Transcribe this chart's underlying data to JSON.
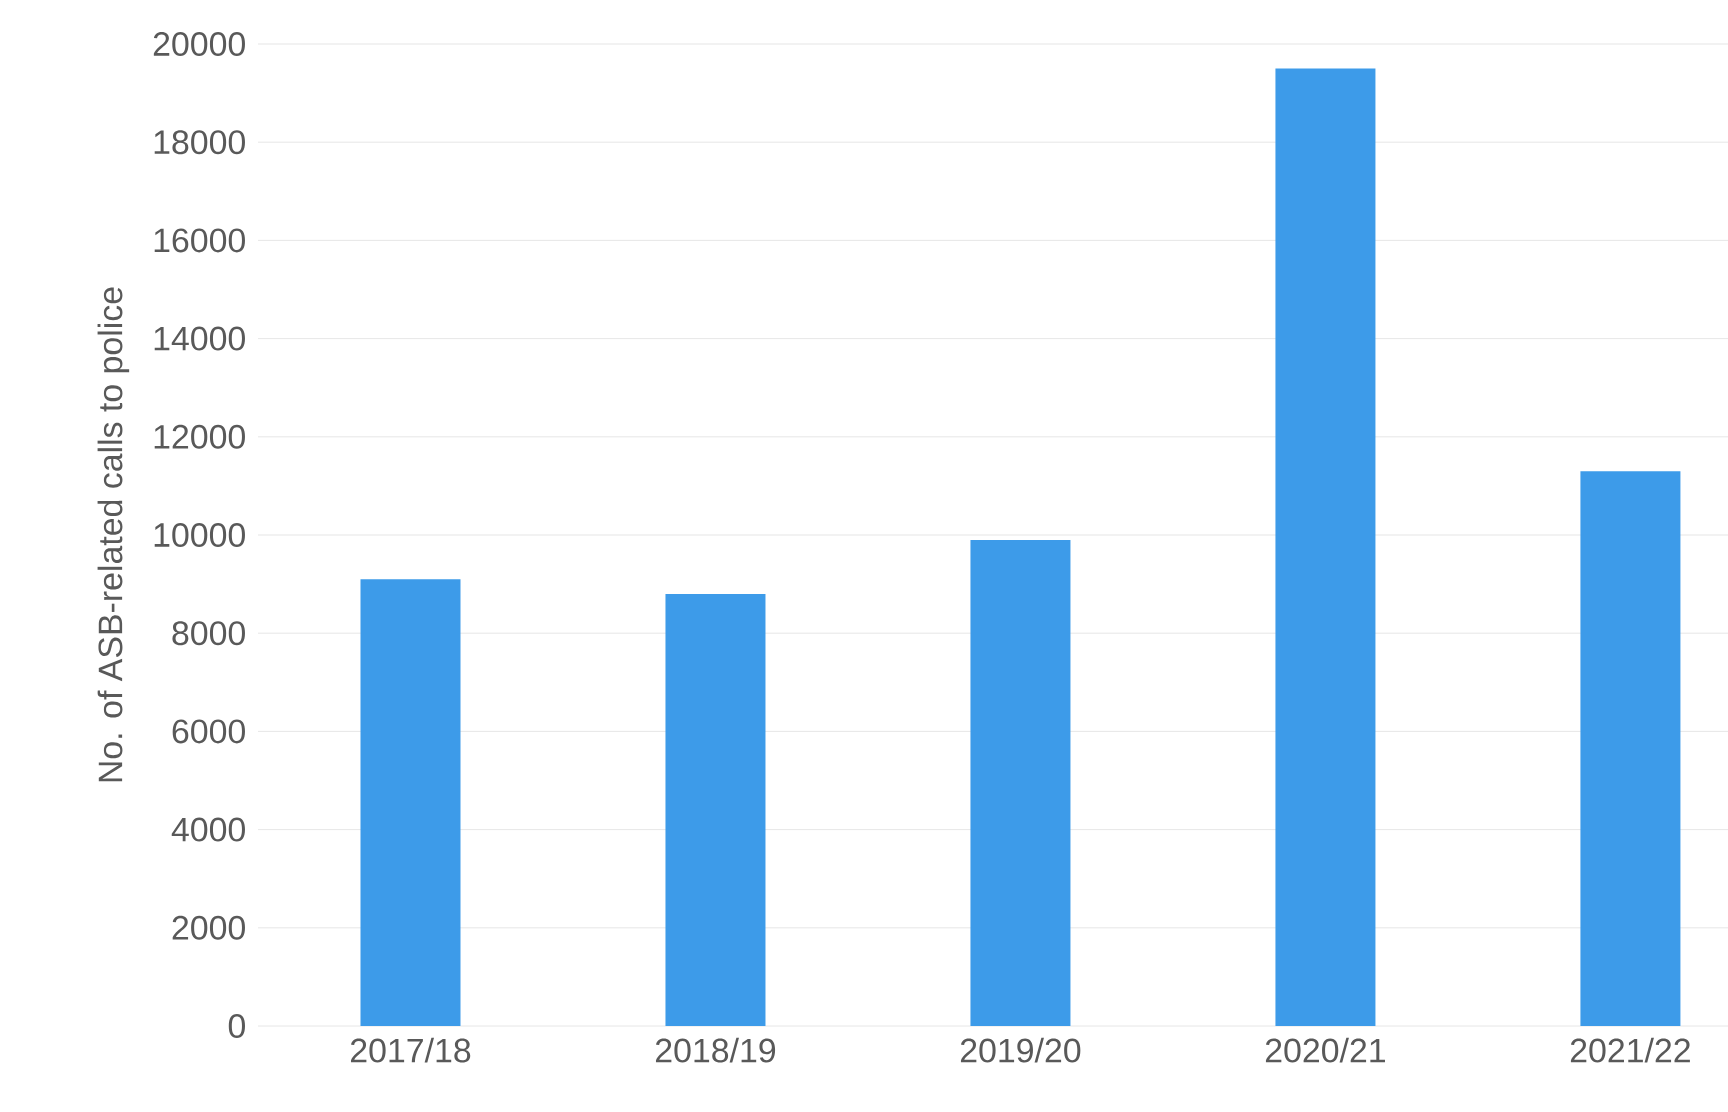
{
  "chart_data": {
    "type": "bar",
    "ylabel": "No. of ASB-related calls to police",
    "categories": [
      "2017/18",
      "2018/19",
      "2019/20",
      "2020/21",
      "2021/22"
    ],
    "values": [
      9100,
      8800,
      9900,
      19500,
      11300
    ],
    "color": "#3d9be9",
    "ylim": [
      0,
      20000
    ],
    "yticks": [
      0,
      2000,
      4000,
      6000,
      8000,
      10000,
      12000,
      14000,
      16000,
      18000,
      20000
    ],
    "grid": "y"
  }
}
